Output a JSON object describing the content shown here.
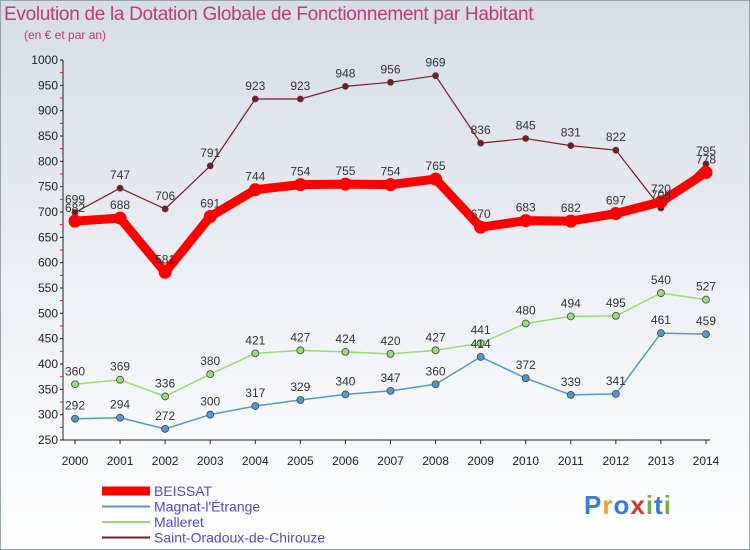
{
  "title": "Evolution de la Dotation Globale de Fonctionnement par Habitant",
  "subtitle": "(en € et par an)",
  "logo": {
    "text": "Proxiti",
    "letters": [
      {
        "ch": "P",
        "color": "#3a7bd5"
      },
      {
        "ch": "r",
        "color": "#f0a020"
      },
      {
        "ch": "o",
        "color": "#3a7bd5"
      },
      {
        "ch": "x",
        "color": "#e03030"
      },
      {
        "ch": "i",
        "color": "#70b040"
      },
      {
        "ch": "t",
        "color": "#3a7bd5"
      },
      {
        "ch": "i",
        "color": "#70b040"
      }
    ]
  },
  "chart_data": {
    "type": "line",
    "categories": [
      "2000",
      "2001",
      "2002",
      "2003",
      "2004",
      "2005",
      "2006",
      "2007",
      "2008",
      "2009",
      "2010",
      "2011",
      "2012",
      "2013",
      "2014"
    ],
    "ylim": [
      250,
      1000
    ],
    "yticks": [
      250,
      300,
      350,
      400,
      450,
      500,
      550,
      600,
      650,
      700,
      750,
      800,
      850,
      900,
      950,
      1000
    ],
    "grid": false,
    "legend_position": "bottom-left",
    "series": [
      {
        "name": "Saint-Oradoux-de-Chirouze",
        "color": "#7a1a22",
        "width": 1.2,
        "marker": 3,
        "values": [
          699,
          747,
          706,
          791,
          923,
          923,
          948,
          956,
          969,
          836,
          845,
          831,
          822,
          708,
          795
        ],
        "labels": [
          "699",
          "747",
          "706",
          "791",
          "923",
          "923",
          "948",
          "956",
          "969",
          "836",
          "845",
          "831",
          "822",
          "708",
          "795"
        ]
      },
      {
        "name": "Malleret",
        "color": "#99dd77",
        "width": 1.5,
        "marker": 3.5,
        "values": [
          360,
          369,
          336,
          380,
          421,
          427,
          424,
          420,
          427,
          441,
          480,
          494,
          495,
          540,
          527
        ],
        "labels": [
          "360",
          "369",
          "336",
          "380",
          "421",
          "427",
          "424",
          "420",
          "427",
          "441",
          "480",
          "494",
          "495",
          "540",
          "527"
        ]
      },
      {
        "name": "Magnat-l'Étrange",
        "color": "#5599cc",
        "width": 1.5,
        "marker": 3.5,
        "values": [
          292,
          294,
          272,
          300,
          317,
          329,
          340,
          347,
          360,
          414,
          372,
          339,
          341,
          461,
          459
        ],
        "labels": [
          "292",
          "294",
          "272",
          "300",
          "317",
          "329",
          "340",
          "347",
          "360",
          "414",
          "372",
          "339",
          "341",
          "461",
          "459"
        ]
      },
      {
        "name": "BEISSAT",
        "color": "#ff0000",
        "width": 9,
        "marker": 6.5,
        "values": [
          682,
          688,
          581,
          691,
          744,
          754,
          755,
          754,
          765,
          670,
          683,
          682,
          697,
          720,
          778
        ],
        "labels": [
          "682",
          "688",
          "581",
          "691",
          "744",
          "754",
          "755",
          "754",
          "765",
          "670",
          "683",
          "682",
          "697",
          "720",
          "778"
        ]
      }
    ],
    "legend_order": [
      "BEISSAT",
      "Magnat-l'Étrange",
      "Malleret",
      "Saint-Oradoux-de-Chirouze"
    ]
  }
}
